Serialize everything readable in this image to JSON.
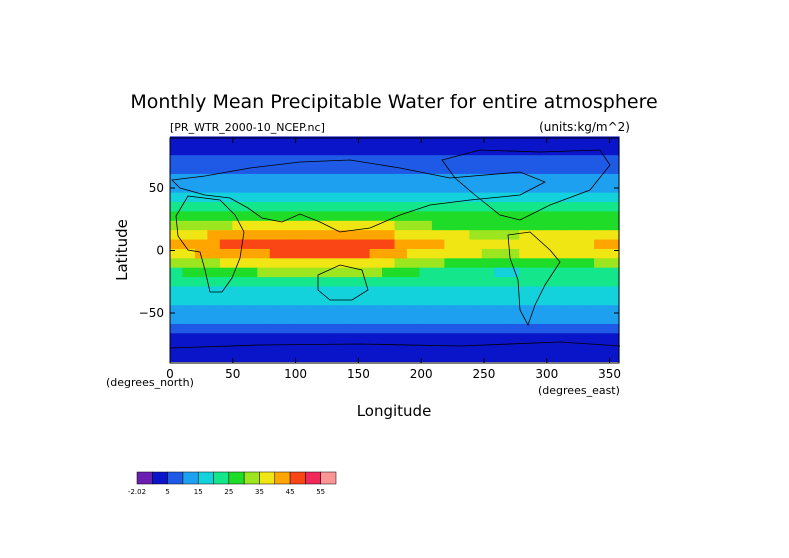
{
  "chart_data": {
    "type": "heatmap",
    "title": "Monthly Mean Precipitable Water for entire atmosphere",
    "source_label": "[PR_WTR_2000-10_NCEP.nc]",
    "units_label": "(units:kg/m^2)",
    "xlabel": "Longitude",
    "ylabel": "Latitude",
    "x_unit_label": "(degrees_east)",
    "y_unit_label": "(degrees_north)",
    "xlim": [
      0,
      357.5
    ],
    "ylim": [
      -90,
      90
    ],
    "x_ticks": [
      0,
      50,
      100,
      150,
      200,
      250,
      300,
      350
    ],
    "y_ticks": [
      50,
      0,
      -50
    ],
    "y_tick_labels": [
      "50",
      "0",
      "−50"
    ],
    "colorbar": {
      "levels": [
        -2.02,
        5,
        10,
        15,
        20,
        25,
        30,
        35,
        40,
        45,
        50,
        55
      ],
      "labels": [
        "-2.02",
        "5",
        "15",
        "25",
        "35",
        "45",
        "55"
      ],
      "colors": [
        "#6a1fb0",
        "#0a14c8",
        "#1e5ae6",
        "#1ea0f0",
        "#14d2dc",
        "#14e68c",
        "#1edc28",
        "#9be61e",
        "#f0e614",
        "#ffa500",
        "#fa4614",
        "#f0285a",
        "#fa9696"
      ]
    },
    "grid": false,
    "grid_lat_bands": [
      {
        "lat": 87.5,
        "value": 3
      },
      {
        "lat": 80,
        "value": 4
      },
      {
        "lat": 72.5,
        "value": 6
      },
      {
        "lat": 65,
        "value": 8
      },
      {
        "lat": 57.5,
        "value": 11
      },
      {
        "lat": 50,
        "value": 14
      },
      {
        "lat": 42.5,
        "value": 18
      },
      {
        "lat": 35,
        "value": 22
      },
      {
        "lat": 27.5,
        "value": 27
      },
      {
        "lat": 20,
        "value": 33
      },
      {
        "lat": 12.5,
        "value": 40
      },
      {
        "lat": 5,
        "value": 44
      },
      {
        "lat": -2.5,
        "value": 41
      },
      {
        "lat": -10,
        "value": 34
      },
      {
        "lat": -17.5,
        "value": 27
      },
      {
        "lat": -25,
        "value": 22
      },
      {
        "lat": -32.5,
        "value": 18
      },
      {
        "lat": -40,
        "value": 15
      },
      {
        "lat": -47.5,
        "value": 12
      },
      {
        "lat": -55,
        "value": 10
      },
      {
        "lat": -62.5,
        "value": 7
      },
      {
        "lat": -70,
        "value": 3
      },
      {
        "lat": -77.5,
        "value": 1
      },
      {
        "lat": -85,
        "value": 0
      }
    ]
  }
}
